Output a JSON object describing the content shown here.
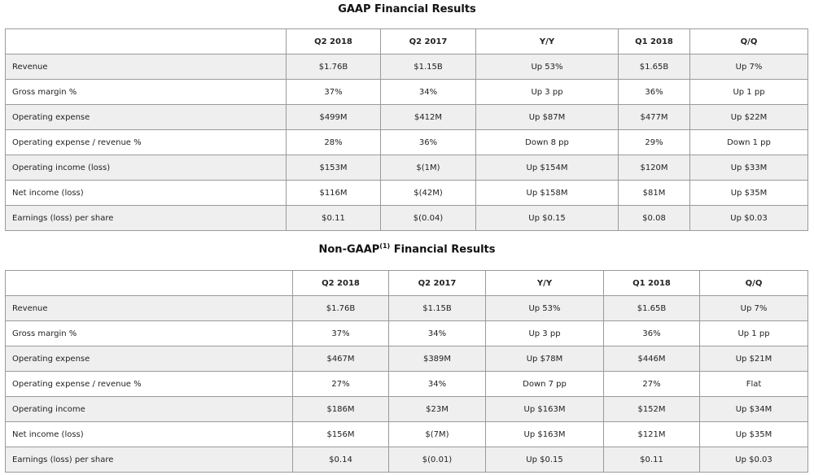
{
  "gaap": {
    "title": "GAAP Financial Results",
    "headers": [
      "",
      "Q2 2018",
      "Q2 2017",
      "Y/Y",
      "Q1 2018",
      "Q/Q"
    ],
    "rows": [
      [
        "Revenue",
        "$1.76B",
        "$1.15B",
        "Up 53%",
        "$1.65B",
        "Up 7%"
      ],
      [
        "Gross margin %",
        "37%",
        "34%",
        "Up 3 pp",
        "36%",
        "Up 1 pp"
      ],
      [
        "Operating expense",
        "$499M",
        "$412M",
        "Up $87M",
        "$477M",
        "Up $22M"
      ],
      [
        "Operating expense / revenue %",
        "28%",
        "36%",
        "Down 8 pp",
        "29%",
        "Down 1 pp"
      ],
      [
        "Operating income (loss)",
        "$153M",
        "$(1M)",
        "Up $154M",
        "$120M",
        "Up $33M"
      ],
      [
        "Net income (loss)",
        "$116M",
        "$(42M)",
        "Up $158M",
        "$81M",
        "Up $35M"
      ],
      [
        "Earnings (loss) per share",
        "$0.11",
        "$(0.04)",
        "Up $0.15",
        "$0.08",
        "Up $0.03"
      ]
    ]
  },
  "nongaap": {
    "title_prefix": "Non-GAAP",
    "title_sup": "(1)",
    "title_suffix": " Financial Results",
    "headers": [
      "",
      "Q2 2018",
      "Q2 2017",
      "Y/Y",
      "Q1 2018",
      "Q/Q"
    ],
    "rows": [
      [
        "Revenue",
        "$1.76B",
        "$1.15B",
        "Up 53%",
        "$1.65B",
        "Up 7%"
      ],
      [
        "Gross margin %",
        "37%",
        "34%",
        "Up 3 pp",
        "36%",
        "Up 1 pp"
      ],
      [
        "Operating expense",
        "$467M",
        "$389M",
        "Up $78M",
        "$446M",
        "Up $21M"
      ],
      [
        "Operating expense / revenue %",
        "27%",
        "34%",
        "Down 7 pp",
        "27%",
        "Flat"
      ],
      [
        "Operating income",
        "$186M",
        "$23M",
        "Up $163M",
        "$152M",
        "Up $34M"
      ],
      [
        "Net income (loss)",
        "$156M",
        "$(7M)",
        "Up $163M",
        "$121M",
        "Up $35M"
      ],
      [
        "Earnings (loss) per share",
        "$0.14",
        "$(0.01)",
        "Up $0.15",
        "$0.11",
        "Up $0.03"
      ]
    ]
  }
}
